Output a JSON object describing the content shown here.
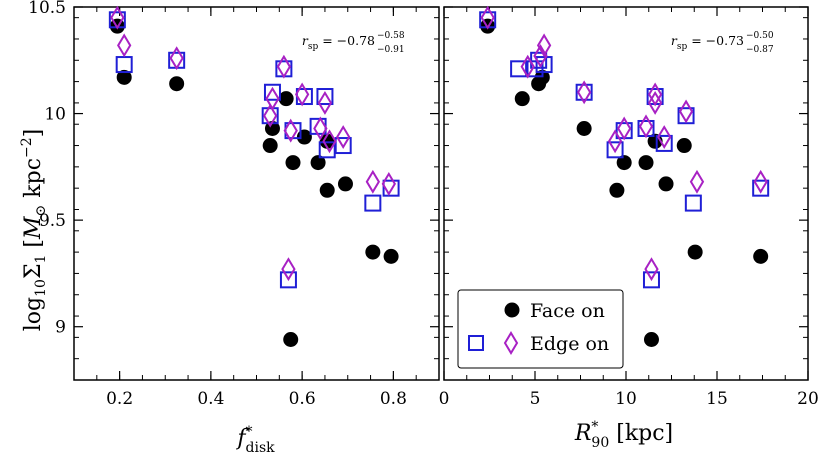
{
  "chart_data": [
    {
      "type": "scatter",
      "xlabel": "f*disk",
      "ylabel": "log10Σ1 [M⊙ kpc−2]",
      "xlim": [
        0.1,
        0.9
      ],
      "ylim": [
        8.75,
        10.5
      ],
      "xticks": [
        0.2,
        0.4,
        0.6,
        0.8
      ],
      "xtick_labels": [
        "0.2",
        "0.4",
        "0.6",
        "0.8"
      ],
      "yticks": [
        9,
        9.5,
        10,
        10.5
      ],
      "ytick_labels": [
        "9",
        "9.5",
        "10",
        "10.5"
      ],
      "annotation": {
        "base": "r",
        "sub": "sp",
        "text": " = −0.78",
        "sup": "−0.58",
        "sub2": "−0.91",
        "position": "top-right"
      },
      "series": [
        {
          "name": "Face on",
          "marker": "circle",
          "color": "#000000",
          "points": [
            [
              0.195,
              10.41
            ],
            [
              0.21,
              10.17
            ],
            [
              0.325,
              10.14
            ],
            [
              0.53,
              9.85
            ],
            [
              0.535,
              9.93
            ],
            [
              0.565,
              10.07
            ],
            [
              0.575,
              8.94
            ],
            [
              0.58,
              9.77
            ],
            [
              0.605,
              9.89
            ],
            [
              0.635,
              9.77
            ],
            [
              0.655,
              9.64
            ],
            [
              0.655,
              9.87
            ],
            [
              0.695,
              9.67
            ],
            [
              0.755,
              9.35
            ],
            [
              0.795,
              9.33
            ]
          ]
        },
        {
          "name": "Edge on (squares)",
          "marker": "square",
          "color": "#1f1fd6",
          "points": [
            [
              0.195,
              10.44
            ],
            [
              0.21,
              10.23
            ],
            [
              0.325,
              10.25
            ],
            [
              0.53,
              9.99
            ],
            [
              0.535,
              10.1
            ],
            [
              0.56,
              10.21
            ],
            [
              0.57,
              9.22
            ],
            [
              0.58,
              9.92
            ],
            [
              0.605,
              10.08
            ],
            [
              0.635,
              9.94
            ],
            [
              0.65,
              10.08
            ],
            [
              0.655,
              9.83
            ],
            [
              0.69,
              9.85
            ],
            [
              0.755,
              9.58
            ],
            [
              0.795,
              9.65
            ]
          ]
        },
        {
          "name": "Edge on (diamonds)",
          "marker": "diamond",
          "color": "#a821c4",
          "points": [
            [
              0.195,
              10.45
            ],
            [
              0.21,
              10.32
            ],
            [
              0.325,
              10.26
            ],
            [
              0.53,
              9.99
            ],
            [
              0.535,
              10.07
            ],
            [
              0.56,
              10.22
            ],
            [
              0.57,
              9.27
            ],
            [
              0.575,
              9.92
            ],
            [
              0.6,
              10.09
            ],
            [
              0.64,
              9.93
            ],
            [
              0.65,
              10.05
            ],
            [
              0.66,
              9.87
            ],
            [
              0.69,
              9.89
            ],
            [
              0.755,
              9.68
            ],
            [
              0.79,
              9.67
            ]
          ]
        }
      ]
    },
    {
      "type": "scatter",
      "xlabel": "R*90 [kpc]",
      "ylabel": "",
      "xlim": [
        0,
        20
      ],
      "ylim": [
        8.75,
        10.5
      ],
      "xticks": [
        0,
        5,
        10,
        15,
        20
      ],
      "xtick_labels": [
        "0",
        "5",
        "10",
        "15",
        "20"
      ],
      "yticks": [
        9,
        9.5,
        10,
        10.5
      ],
      "ytick_labels": [],
      "annotation": {
        "base": "r",
        "sub": "sp",
        "text": " = −0.73",
        "sup": "−0.50",
        "sub2": "−0.87",
        "position": "top-right"
      },
      "legend": {
        "position": "bottom-right",
        "entries": [
          {
            "label": "Face on",
            "markers": [
              "circle"
            ]
          },
          {
            "label": "Edge on",
            "markers": [
              "square",
              "diamond"
            ]
          }
        ]
      },
      "series": [
        {
          "name": "Face on",
          "marker": "circle",
          "color": "#000000",
          "points": [
            [
              2.4,
              10.41
            ],
            [
              4.3,
              10.07
            ],
            [
              5.2,
              10.14
            ],
            [
              5.4,
              10.17
            ],
            [
              7.7,
              9.93
            ],
            [
              9.5,
              9.64
            ],
            [
              9.9,
              9.77
            ],
            [
              11.1,
              9.77
            ],
            [
              11.4,
              8.94
            ],
            [
              11.6,
              9.87
            ],
            [
              12.2,
              9.67
            ],
            [
              13.2,
              9.85
            ],
            [
              13.8,
              9.35
            ],
            [
              17.4,
              9.33
            ]
          ]
        },
        {
          "name": "Edge on (squares)",
          "marker": "square",
          "color": "#1f1fd6",
          "points": [
            [
              2.4,
              10.44
            ],
            [
              4.1,
              10.21
            ],
            [
              5.0,
              10.21
            ],
            [
              5.2,
              10.25
            ],
            [
              5.5,
              10.23
            ],
            [
              7.7,
              10.1
            ],
            [
              9.4,
              9.83
            ],
            [
              9.9,
              9.92
            ],
            [
              11.1,
              9.93
            ],
            [
              11.4,
              9.22
            ],
            [
              11.6,
              10.08
            ],
            [
              12.1,
              9.86
            ],
            [
              13.3,
              9.99
            ],
            [
              13.7,
              9.58
            ],
            [
              17.4,
              9.65
            ]
          ]
        },
        {
          "name": "Edge on (diamonds)",
          "marker": "diamond",
          "color": "#a821c4",
          "points": [
            [
              2.4,
              10.45
            ],
            [
              4.6,
              10.22
            ],
            [
              5.3,
              10.27
            ],
            [
              5.5,
              10.32
            ],
            [
              7.7,
              10.1
            ],
            [
              9.4,
              9.87
            ],
            [
              9.9,
              9.93
            ],
            [
              11.1,
              9.94
            ],
            [
              11.4,
              9.27
            ],
            [
              11.6,
              10.09
            ],
            [
              11.6,
              10.05
            ],
            [
              12.1,
              9.89
            ],
            [
              13.3,
              10.01
            ],
            [
              13.9,
              9.68
            ],
            [
              17.4,
              9.68
            ]
          ]
        }
      ]
    }
  ],
  "legend": {
    "face_label": "Face on",
    "edge_label": "Edge on"
  },
  "colors": {
    "face": "#000000",
    "square": "#1f1fd6",
    "diamond": "#a821c4"
  }
}
